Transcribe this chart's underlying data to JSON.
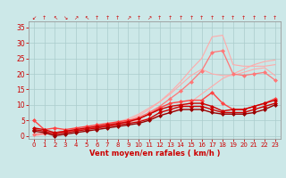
{
  "xlabel": "Vent moyen/en rafales ( km/h )",
  "x": [
    0,
    1,
    2,
    3,
    4,
    5,
    6,
    7,
    8,
    9,
    10,
    11,
    12,
    13,
    14,
    15,
    16,
    17,
    18,
    19,
    20,
    21,
    22,
    23
  ],
  "series": [
    {
      "color": "#ffaaaa",
      "lw": 0.8,
      "marker": null,
      "ms": 0,
      "values": [
        0.0,
        0.5,
        1.0,
        1.5,
        2.0,
        2.5,
        3.0,
        3.5,
        4.0,
        4.5,
        5.0,
        5.5,
        6.5,
        7.5,
        9.0,
        11.0,
        13.5,
        16.0,
        18.5,
        20.0,
        21.5,
        23.0,
        24.0,
        24.5
      ]
    },
    {
      "color": "#ffaaaa",
      "lw": 0.8,
      "marker": null,
      "ms": 0,
      "values": [
        0.0,
        0.5,
        1.0,
        1.5,
        2.0,
        2.5,
        3.0,
        3.5,
        4.5,
        5.5,
        7.0,
        9.0,
        11.0,
        13.5,
        16.5,
        19.5,
        21.5,
        20.0,
        19.5,
        19.5,
        20.5,
        21.5,
        22.0,
        19.5
      ]
    },
    {
      "color": "#ffaaaa",
      "lw": 0.8,
      "marker": null,
      "ms": 0,
      "values": [
        0.5,
        0.7,
        1.0,
        1.4,
        1.8,
        2.2,
        2.7,
        3.2,
        4.0,
        5.0,
        6.5,
        8.5,
        11.0,
        14.0,
        17.5,
        21.5,
        25.0,
        32.0,
        32.5,
        23.0,
        22.5,
        22.5,
        22.5,
        23.0
      ]
    },
    {
      "color": "#ff7777",
      "lw": 0.9,
      "marker": "D",
      "ms": 2,
      "values": [
        0.5,
        0.7,
        1.0,
        1.3,
        1.8,
        2.2,
        2.7,
        3.1,
        3.8,
        4.7,
        6.0,
        7.5,
        9.5,
        12.0,
        14.5,
        17.5,
        21.0,
        27.0,
        27.5,
        20.0,
        19.5,
        20.0,
        20.5,
        18.0
      ]
    },
    {
      "color": "#ff4444",
      "lw": 1.0,
      "marker": "D",
      "ms": 2,
      "values": [
        5.0,
        2.0,
        2.5,
        2.0,
        2.5,
        3.0,
        3.5,
        4.0,
        4.5,
        5.0,
        5.5,
        7.0,
        9.0,
        10.5,
        11.0,
        11.5,
        11.5,
        14.0,
        10.5,
        8.5,
        8.5,
        9.5,
        10.5,
        12.0
      ]
    },
    {
      "color": "#cc0000",
      "lw": 1.0,
      "marker": "D",
      "ms": 2,
      "values": [
        2.5,
        2.0,
        1.0,
        1.5,
        2.0,
        2.5,
        3.0,
        3.5,
        4.0,
        4.5,
        5.5,
        7.0,
        8.5,
        9.5,
        10.0,
        10.5,
        10.5,
        9.5,
        8.0,
        8.5,
        8.5,
        9.5,
        10.5,
        11.5
      ]
    },
    {
      "color": "#cc0000",
      "lw": 1.0,
      "marker": "D",
      "ms": 2,
      "values": [
        2.0,
        1.5,
        0.5,
        1.0,
        1.5,
        2.0,
        2.5,
        3.0,
        3.5,
        4.0,
        4.5,
        5.5,
        7.5,
        8.5,
        9.5,
        9.5,
        9.5,
        8.5,
        7.5,
        7.5,
        7.5,
        8.5,
        9.5,
        10.5
      ]
    },
    {
      "color": "#990000",
      "lw": 1.0,
      "marker": "D",
      "ms": 2,
      "values": [
        1.5,
        1.0,
        0.0,
        0.5,
        1.0,
        1.5,
        2.0,
        2.5,
        3.0,
        3.5,
        4.0,
        5.0,
        6.5,
        7.5,
        8.5,
        8.5,
        8.5,
        7.5,
        7.0,
        7.0,
        7.0,
        7.5,
        8.5,
        10.0
      ]
    }
  ],
  "ylim": [
    -1,
    37
  ],
  "xlim": [
    -0.5,
    23.5
  ],
  "yticks": [
    0,
    5,
    10,
    15,
    20,
    25,
    30,
    35
  ],
  "bg_color": "#cce8e8",
  "grid_color": "#aacccc",
  "tick_color": "#cc0000",
  "label_color": "#cc0000",
  "arrow_labels": [
    "↙",
    "↑",
    "↖",
    "↘",
    "↗",
    "↖",
    "↑",
    "↑",
    "↑",
    "↗",
    "↑",
    "↗",
    "↑",
    "↑",
    "↑",
    "↑",
    "↑",
    "↑",
    "↑",
    "↑",
    "↑",
    "↑",
    "↑",
    "↑"
  ]
}
